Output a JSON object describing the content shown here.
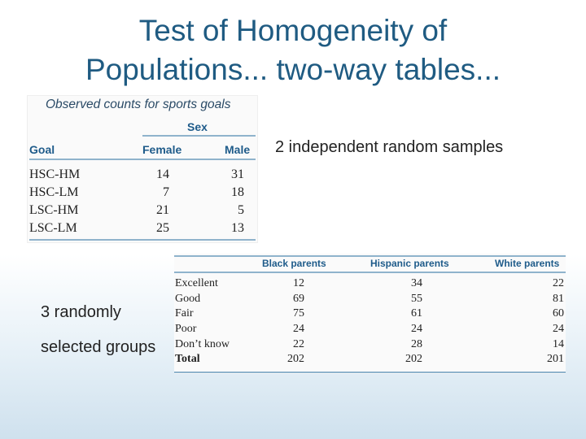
{
  "title": {
    "line1": "Test of Homogeneity of",
    "line2": "Populations... two-way tables..."
  },
  "table1": {
    "caption": "Observed counts for sports goals",
    "group_header": "Sex",
    "columns": [
      "Goal",
      "Female",
      "Male"
    ],
    "rows": [
      {
        "goal": "HSC-HM",
        "female": "14",
        "male": "31"
      },
      {
        "goal": "HSC-LM",
        "female": "7",
        "male": "18"
      },
      {
        "goal": "LSC-HM",
        "female": "21",
        "male": "5"
      },
      {
        "goal": "LSC-LM",
        "female": "25",
        "male": "13"
      }
    ]
  },
  "notes": {
    "independent": "2 independent random samples",
    "groups_line1": "3 randomly",
    "groups_line2": "selected groups"
  },
  "table2": {
    "columns": [
      "Black parents",
      "Hispanic parents",
      "White parents"
    ],
    "rows": [
      {
        "label": "Excellent",
        "black": "12",
        "hispanic": "34",
        "white": "22"
      },
      {
        "label": "Good",
        "black": "69",
        "hispanic": "55",
        "white": "81"
      },
      {
        "label": "Fair",
        "black": "75",
        "hispanic": "61",
        "white": "60"
      },
      {
        "label": "Poor",
        "black": "24",
        "hispanic": "24",
        "white": "24"
      },
      {
        "label": "Don’t know",
        "black": "22",
        "hispanic": "28",
        "white": "14"
      },
      {
        "label": "Total",
        "black": "202",
        "hispanic": "202",
        "white": "201"
      }
    ]
  }
}
